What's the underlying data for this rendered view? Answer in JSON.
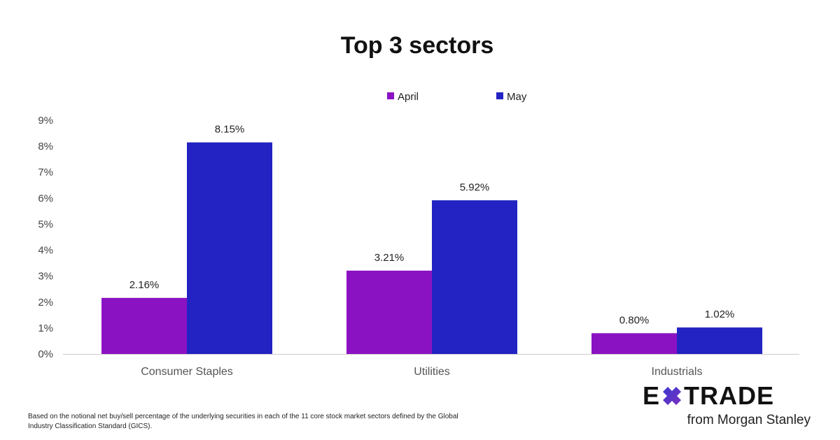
{
  "brand": {
    "logo_prefix": "E",
    "logo_suffix": "TRADE",
    "tagline": "from Morgan Stanley",
    "star_colors": [
      "#3a3ad0",
      "#7a2fc0"
    ]
  },
  "footnote": "Based on the notional net buy/sell percentage of the underlying securities in each of the 11 core stock market sectors defined by the Global Industry Classification Standard (GICS).",
  "chart_data": {
    "type": "bar",
    "title": "Top 3 sectors",
    "categories": [
      "Consumer Staples",
      "Utilities",
      "Industrials"
    ],
    "series": [
      {
        "name": "April",
        "color": "#8b12c2",
        "values": [
          2.16,
          3.21,
          0.8
        ],
        "labels": [
          "2.16%",
          "3.21%",
          "0.80%"
        ]
      },
      {
        "name": "May",
        "color": "#2223c2",
        "values": [
          8.15,
          5.92,
          1.02
        ],
        "labels": [
          "8.15%",
          "5.92%",
          "1.02%"
        ]
      }
    ],
    "ylim": [
      0,
      9
    ],
    "yticks": [
      "0%",
      "1%",
      "2%",
      "3%",
      "4%",
      "5%",
      "6%",
      "7%",
      "8%",
      "9%"
    ],
    "grid": false,
    "legend": "top-center",
    "xlabel": "",
    "ylabel": ""
  }
}
